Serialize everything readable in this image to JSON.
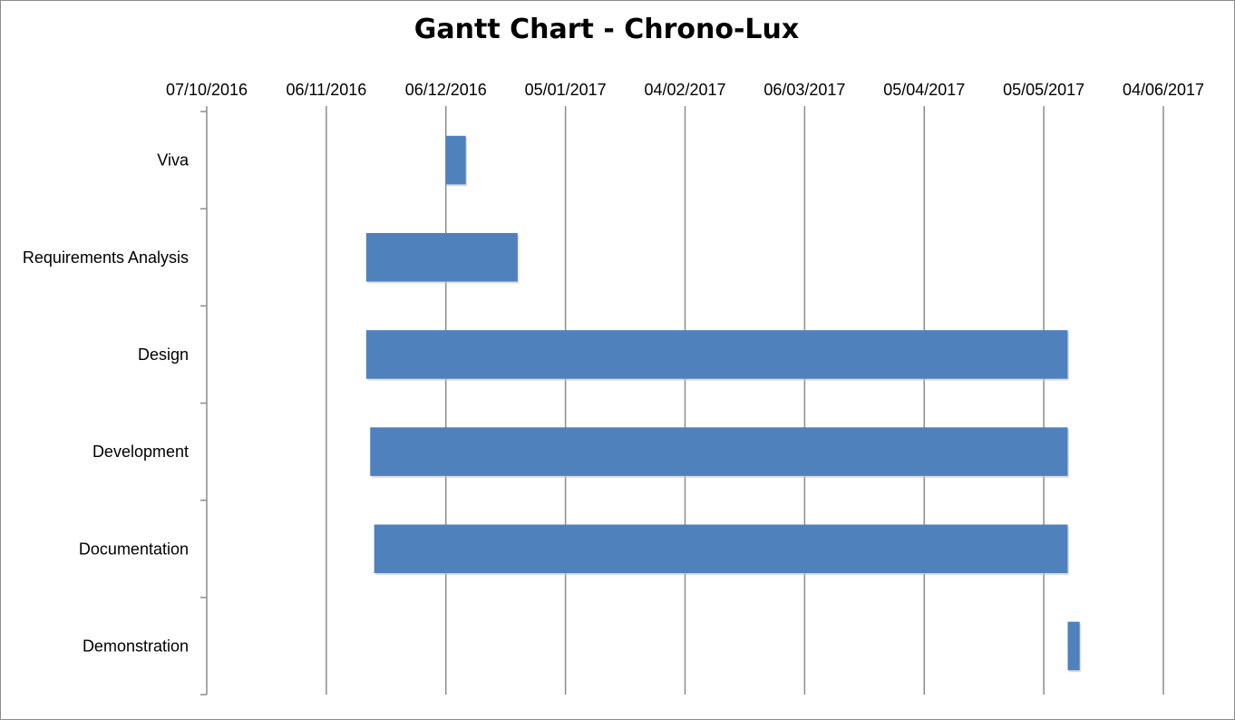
{
  "chart_data": {
    "type": "bar",
    "orientation": "horizontal-gantt",
    "title": "Gantt Chart - Chrono-Lux",
    "x_axis_position": "top",
    "x_ticks": [
      "07/10/2016",
      "06/11/2016",
      "06/12/2016",
      "05/01/2017",
      "04/02/2017",
      "06/03/2017",
      "05/04/2017",
      "05/05/2017",
      "04/06/2017"
    ],
    "xlim": [
      "2016-10-07",
      "2017-06-04"
    ],
    "grid": "vertical",
    "bar_color": "#4F81BD",
    "tasks": [
      {
        "name": "Viva",
        "start": "2016-12-06",
        "end": "2016-12-11"
      },
      {
        "name": "Requirements Analysis",
        "start": "2016-11-16",
        "end": "2016-12-24"
      },
      {
        "name": "Design",
        "start": "2016-11-16",
        "end": "2017-05-11"
      },
      {
        "name": "Development",
        "start": "2016-11-17",
        "end": "2017-05-11"
      },
      {
        "name": "Documentation",
        "start": "2016-11-18",
        "end": "2017-05-11"
      },
      {
        "name": "Demonstration",
        "start": "2017-05-11",
        "end": "2017-05-14"
      }
    ]
  }
}
